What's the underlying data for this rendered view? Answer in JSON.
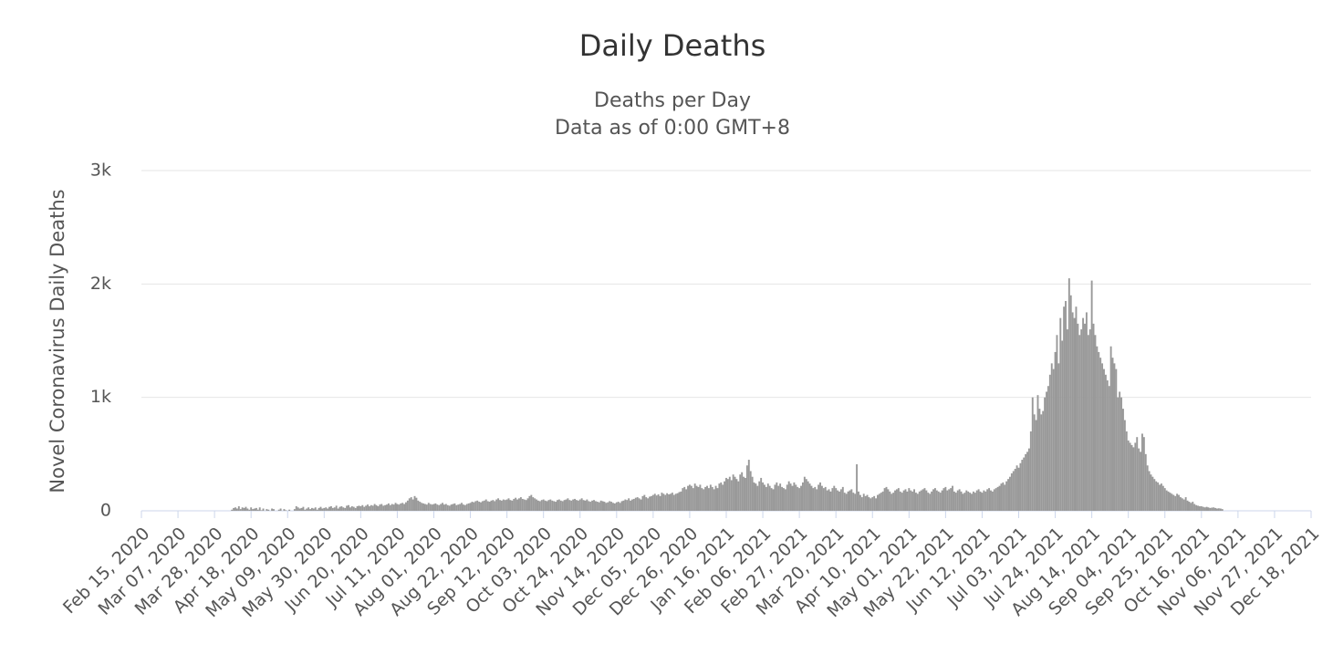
{
  "chart_data": {
    "type": "bar",
    "title": "Daily Deaths",
    "subtitle": [
      "Deaths per Day",
      "Data as of 0:00 GMT+8"
    ],
    "y_label": "Novel Coronavirus Daily Deaths",
    "color": "#999999",
    "grid": true,
    "ylim": [
      0,
      3000
    ],
    "yticks": [
      0,
      {
        "value": 1000,
        "label": "1k"
      },
      {
        "value": 2000,
        "label": "2k"
      },
      {
        "value": 3000,
        "label": "3k"
      }
    ],
    "categories": [
      "Feb 15, 2020",
      null,
      null,
      null,
      null,
      null,
      null,
      null,
      null,
      null,
      null,
      null,
      null,
      null,
      null,
      null,
      null,
      null,
      null,
      null,
      null,
      "Mar 07, 2020",
      null,
      null,
      null,
      null,
      null,
      null,
      null,
      null,
      null,
      null,
      null,
      null,
      null,
      null,
      null,
      null,
      null,
      null,
      null,
      null,
      "Mar 28, 2020",
      null,
      null,
      null,
      null,
      null,
      null,
      null,
      null,
      null,
      null,
      null,
      null,
      null,
      null,
      null,
      null,
      null,
      null,
      null,
      null,
      "Apr 18, 2020",
      null,
      null,
      null,
      null,
      null,
      null,
      null,
      null,
      null,
      null,
      null,
      null,
      null,
      null,
      null,
      null,
      null,
      null,
      null,
      null,
      "May 09, 2020",
      null,
      null,
      null,
      null,
      null,
      null,
      null,
      null,
      null,
      null,
      null,
      null,
      null,
      null,
      null,
      null,
      null,
      null,
      null,
      null,
      "May 30, 2020",
      null,
      null,
      null,
      null,
      null,
      null,
      null,
      null,
      null,
      null,
      null,
      null,
      null,
      null,
      null,
      null,
      null,
      null,
      null,
      null,
      "Jun 20, 2020",
      null,
      null,
      null,
      null,
      null,
      null,
      null,
      null,
      null,
      null,
      null,
      null,
      null,
      null,
      null,
      null,
      null,
      null,
      null,
      null,
      "Jul 11, 2020",
      null,
      null,
      null,
      null,
      null,
      null,
      null,
      null,
      null,
      null,
      null,
      null,
      null,
      null,
      null,
      null,
      null,
      null,
      null,
      null,
      "Aug 01, 2020",
      null,
      null,
      null,
      null,
      null,
      null,
      null,
      null,
      null,
      null,
      null,
      null,
      null,
      null,
      null,
      null,
      null,
      null,
      null,
      null,
      "Aug 22, 2020",
      null,
      null,
      null,
      null,
      null,
      null,
      null,
      null,
      null,
      null,
      null,
      null,
      null,
      null,
      null,
      null,
      null,
      null,
      null,
      null,
      "Sep 12, 2020",
      null,
      null,
      null,
      null,
      null,
      null,
      null,
      null,
      null,
      null,
      null,
      null,
      null,
      null,
      null,
      null,
      null,
      null,
      null,
      null,
      "Oct 03, 2020",
      null,
      null,
      null,
      null,
      null,
      null,
      null,
      null,
      null,
      null,
      null,
      null,
      null,
      null,
      null,
      null,
      null,
      null,
      null,
      null,
      "Oct 24, 2020",
      null,
      null,
      null,
      null,
      null,
      null,
      null,
      null,
      null,
      null,
      null,
      null,
      null,
      null,
      null,
      null,
      null,
      null,
      null,
      null,
      "Nov 14, 2020",
      null,
      null,
      null,
      null,
      null,
      null,
      null,
      null,
      null,
      null,
      null,
      null,
      null,
      null,
      null,
      null,
      null,
      null,
      null,
      null,
      "Dec 05, 2020",
      null,
      null,
      null,
      null,
      null,
      null,
      null,
      null,
      null,
      null,
      null,
      null,
      null,
      null,
      null,
      null,
      null,
      null,
      null,
      null,
      "Dec 26, 2020",
      null,
      null,
      null,
      null,
      null,
      null,
      null,
      null,
      null,
      null,
      null,
      null,
      null,
      null,
      null,
      null,
      null,
      null,
      null,
      null,
      "Jan 16, 2021",
      null,
      null,
      null,
      null,
      null,
      null,
      null,
      null,
      null,
      null,
      null,
      null,
      null,
      null,
      null,
      null,
      null,
      null,
      null,
      null,
      "Feb 06, 2021",
      null,
      null,
      null,
      null,
      null,
      null,
      null,
      null,
      null,
      null,
      null,
      null,
      null,
      null,
      null,
      null,
      null,
      null,
      null,
      null,
      "Feb 27, 2021",
      null,
      null,
      null,
      null,
      null,
      null,
      null,
      null,
      null,
      null,
      null,
      null,
      null,
      null,
      null,
      null,
      null,
      null,
      null,
      null,
      "Mar 20, 2021",
      null,
      null,
      null,
      null,
      null,
      null,
      null,
      null,
      null,
      null,
      null,
      null,
      null,
      null,
      null,
      null,
      null,
      null,
      null,
      null,
      "Apr 10, 2021",
      null,
      null,
      null,
      null,
      null,
      null,
      null,
      null,
      null,
      null,
      null,
      null,
      null,
      null,
      null,
      null,
      null,
      null,
      null,
      null,
      "May 01, 2021",
      null,
      null,
      null,
      null,
      null,
      null,
      null,
      null,
      null,
      null,
      null,
      null,
      null,
      null,
      null,
      null,
      null,
      null,
      null,
      null,
      "May 22, 2021",
      null,
      null,
      null,
      null,
      null,
      null,
      null,
      null,
      null,
      null,
      null,
      null,
      null,
      null,
      null,
      null,
      null,
      null,
      null,
      null,
      "Jun 12, 2021",
      null,
      null,
      null,
      null,
      null,
      null,
      null,
      null,
      null,
      null,
      null,
      null,
      null,
      null,
      null,
      null,
      null,
      null,
      null,
      null,
      "Jul 03, 2021",
      null,
      null,
      null,
      null,
      null,
      null,
      null,
      null,
      null,
      null,
      null,
      null,
      null,
      null,
      null,
      null,
      null,
      null,
      null,
      null,
      "Jul 24, 2021",
      null,
      null,
      null,
      null,
      null,
      null,
      null,
      null,
      null,
      null,
      null,
      null,
      null,
      null,
      null,
      null,
      null,
      null,
      null,
      null,
      "Aug 14, 2021",
      null,
      null,
      null,
      null,
      null,
      null,
      null,
      null,
      null,
      null,
      null,
      null,
      null,
      null,
      null,
      null,
      null,
      null,
      null,
      null,
      "Sep 04, 2021",
      null,
      null,
      null,
      null,
      null,
      null,
      null,
      null,
      null,
      null,
      null,
      null,
      null,
      null,
      null,
      null,
      null,
      null,
      null,
      null,
      "Sep 25, 2021",
      null,
      null,
      null,
      null,
      null,
      null,
      null,
      null,
      null,
      null,
      null,
      null,
      null,
      null,
      null,
      null,
      null,
      null,
      null,
      null,
      "Oct 16, 2021",
      null,
      null,
      null,
      null,
      null,
      null,
      null,
      null,
      null,
      null,
      null,
      null,
      null,
      null,
      null,
      null,
      null,
      null,
      null,
      null,
      "Nov 06, 2021",
      null,
      null,
      null,
      null,
      null,
      null,
      null,
      null,
      null,
      null,
      null,
      null,
      null,
      null,
      null,
      null,
      null,
      null,
      null,
      null,
      "Nov 27, 2021",
      null,
      null,
      null,
      null,
      null,
      null,
      null,
      null,
      null,
      null,
      null,
      null,
      null,
      null,
      null,
      null,
      null,
      null,
      null,
      null,
      "Dec 18, 2021"
    ],
    "values": [
      0,
      0,
      0,
      0,
      0,
      0,
      0,
      0,
      0,
      0,
      0,
      0,
      0,
      0,
      0,
      0,
      0,
      0,
      0,
      0,
      0,
      0,
      0,
      0,
      0,
      0,
      0,
      0,
      0,
      0,
      0,
      0,
      0,
      0,
      0,
      0,
      0,
      0,
      0,
      0,
      0,
      0,
      0,
      0,
      0,
      0,
      0,
      0,
      0,
      0,
      0,
      0,
      10,
      25,
      30,
      20,
      40,
      15,
      30,
      25,
      35,
      20,
      10,
      30,
      15,
      20,
      25,
      10,
      30,
      5,
      20,
      0,
      15,
      10,
      0,
      20,
      15,
      0,
      0,
      10,
      20,
      0,
      15,
      5,
      0,
      10,
      0,
      0,
      15,
      40,
      30,
      20,
      25,
      35,
      10,
      20,
      30,
      15,
      25,
      20,
      30,
      10,
      25,
      35,
      20,
      25,
      30,
      20,
      35,
      40,
      25,
      30,
      45,
      20,
      35,
      40,
      30,
      25,
      45,
      50,
      30,
      40,
      35,
      25,
      40,
      45,
      40,
      50,
      35,
      45,
      55,
      40,
      50,
      45,
      60,
      50,
      40,
      55,
      60,
      45,
      50,
      55,
      65,
      50,
      60,
      55,
      70,
      60,
      55,
      65,
      70,
      60,
      75,
      90,
      110,
      120,
      100,
      130,
      115,
      90,
      80,
      70,
      65,
      60,
      55,
      70,
      60,
      55,
      60,
      65,
      55,
      50,
      60,
      70,
      55,
      60,
      50,
      45,
      55,
      60,
      65,
      50,
      55,
      60,
      70,
      55,
      50,
      60,
      65,
      70,
      80,
      75,
      85,
      90,
      80,
      75,
      85,
      90,
      100,
      85,
      80,
      90,
      95,
      85,
      100,
      110,
      95,
      90,
      100,
      95,
      100,
      110,
      95,
      90,
      105,
      115,
      100,
      110,
      120,
      105,
      100,
      95,
      110,
      130,
      140,
      120,
      110,
      100,
      90,
      85,
      95,
      100,
      90,
      85,
      95,
      100,
      90,
      85,
      80,
      95,
      100,
      90,
      85,
      95,
      100,
      110,
      95,
      90,
      100,
      105,
      95,
      90,
      100,
      110,
      95,
      90,
      100,
      85,
      80,
      90,
      95,
      85,
      80,
      75,
      90,
      85,
      80,
      70,
      75,
      85,
      80,
      70,
      65,
      75,
      80,
      70,
      85,
      90,
      100,
      95,
      110,
      90,
      100,
      105,
      115,
      120,
      110,
      100,
      130,
      140,
      120,
      110,
      125,
      130,
      140,
      150,
      135,
      145,
      130,
      160,
      150,
      140,
      155,
      145,
      150,
      160,
      140,
      150,
      155,
      165,
      170,
      200,
      210,
      190,
      220,
      230,
      220,
      200,
      240,
      220,
      210,
      230,
      200,
      190,
      210,
      220,
      200,
      230,
      210,
      190,
      220,
      200,
      240,
      250,
      230,
      260,
      290,
      280,
      300,
      270,
      320,
      300,
      280,
      260,
      320,
      340,
      300,
      290,
      400,
      450,
      350,
      300,
      250,
      240,
      220,
      260,
      290,
      250,
      230,
      210,
      240,
      220,
      200,
      190,
      230,
      250,
      220,
      240,
      210,
      200,
      190,
      230,
      260,
      240,
      220,
      250,
      230,
      210,
      200,
      220,
      250,
      300,
      280,
      260,
      240,
      220,
      200,
      210,
      190,
      230,
      250,
      220,
      200,
      210,
      180,
      190,
      170,
      200,
      220,
      200,
      180,
      170,
      190,
      210,
      160,
      150,
      170,
      180,
      190,
      160,
      150,
      410,
      170,
      140,
      120,
      150,
      130,
      140,
      120,
      110,
      120,
      130,
      110,
      140,
      150,
      160,
      170,
      200,
      210,
      190,
      170,
      150,
      160,
      180,
      190,
      200,
      170,
      160,
      180,
      190,
      170,
      200,
      180,
      170,
      190,
      160,
      150,
      170,
      180,
      190,
      200,
      180,
      160,
      150,
      170,
      190,
      200,
      180,
      170,
      160,
      180,
      200,
      210,
      180,
      190,
      200,
      220,
      170,
      160,
      180,
      190,
      170,
      150,
      160,
      180,
      170,
      160,
      150,
      170,
      160,
      180,
      190,
      170,
      160,
      180,
      170,
      190,
      200,
      180,
      170,
      190,
      200,
      210,
      220,
      240,
      250,
      230,
      260,
      280,
      300,
      330,
      350,
      370,
      400,
      380,
      420,
      450,
      470,
      500,
      520,
      550,
      700,
      1000,
      850,
      800,
      1020,
      900,
      850,
      880,
      1000,
      1050,
      1100,
      1200,
      1300,
      1250,
      1400,
      1550,
      1300,
      1700,
      1500,
      1800,
      1850,
      1600,
      2050,
      1900,
      1750,
      1700,
      1800,
      1650,
      1550,
      1600,
      1700,
      1650,
      1750,
      1550,
      1600,
      2030,
      1650,
      1550,
      1450,
      1400,
      1350,
      1300,
      1250,
      1200,
      1150,
      1100,
      1450,
      1350,
      1300,
      1250,
      1000,
      1050,
      1000,
      900,
      800,
      700,
      620,
      600,
      580,
      560,
      600,
      650,
      550,
      520,
      680,
      650,
      500,
      400,
      350,
      320,
      300,
      280,
      260,
      250,
      230,
      240,
      220,
      200,
      180,
      170,
      160,
      150,
      140,
      130,
      150,
      140,
      120,
      110,
      100,
      120,
      90,
      80,
      70,
      80,
      60,
      50,
      45,
      40,
      40,
      35,
      30,
      35,
      30,
      25,
      28,
      30,
      25,
      20,
      22,
      20,
      15,
      null,
      null,
      null,
      null,
      null,
      null,
      null,
      null,
      null,
      null,
      null,
      null,
      null,
      null,
      null,
      null,
      null,
      null,
      null,
      null,
      null,
      null,
      null,
      null,
      null,
      null,
      null,
      null,
      null,
      null,
      null,
      null,
      null,
      null,
      null,
      null,
      null,
      null,
      null,
      null,
      null,
      null,
      null,
      null,
      null,
      null,
      null,
      null,
      null,
      null,
      null
    ]
  }
}
